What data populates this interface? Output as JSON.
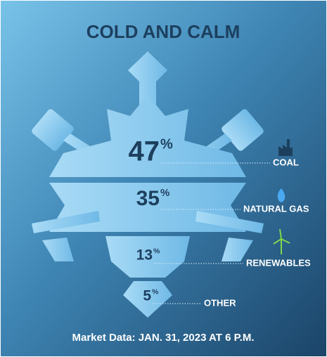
{
  "chart_data": {
    "type": "snowflake",
    "title": "COLD AND CALM",
    "categories": [
      "COAL",
      "NATURAL GAS",
      "RENEWABLES",
      "OTHER"
    ],
    "values": [
      47,
      35,
      13,
      5
    ],
    "unit": "%",
    "note": "Market Data: JAN. 31, 2023 AT 6 P.M."
  }
}
